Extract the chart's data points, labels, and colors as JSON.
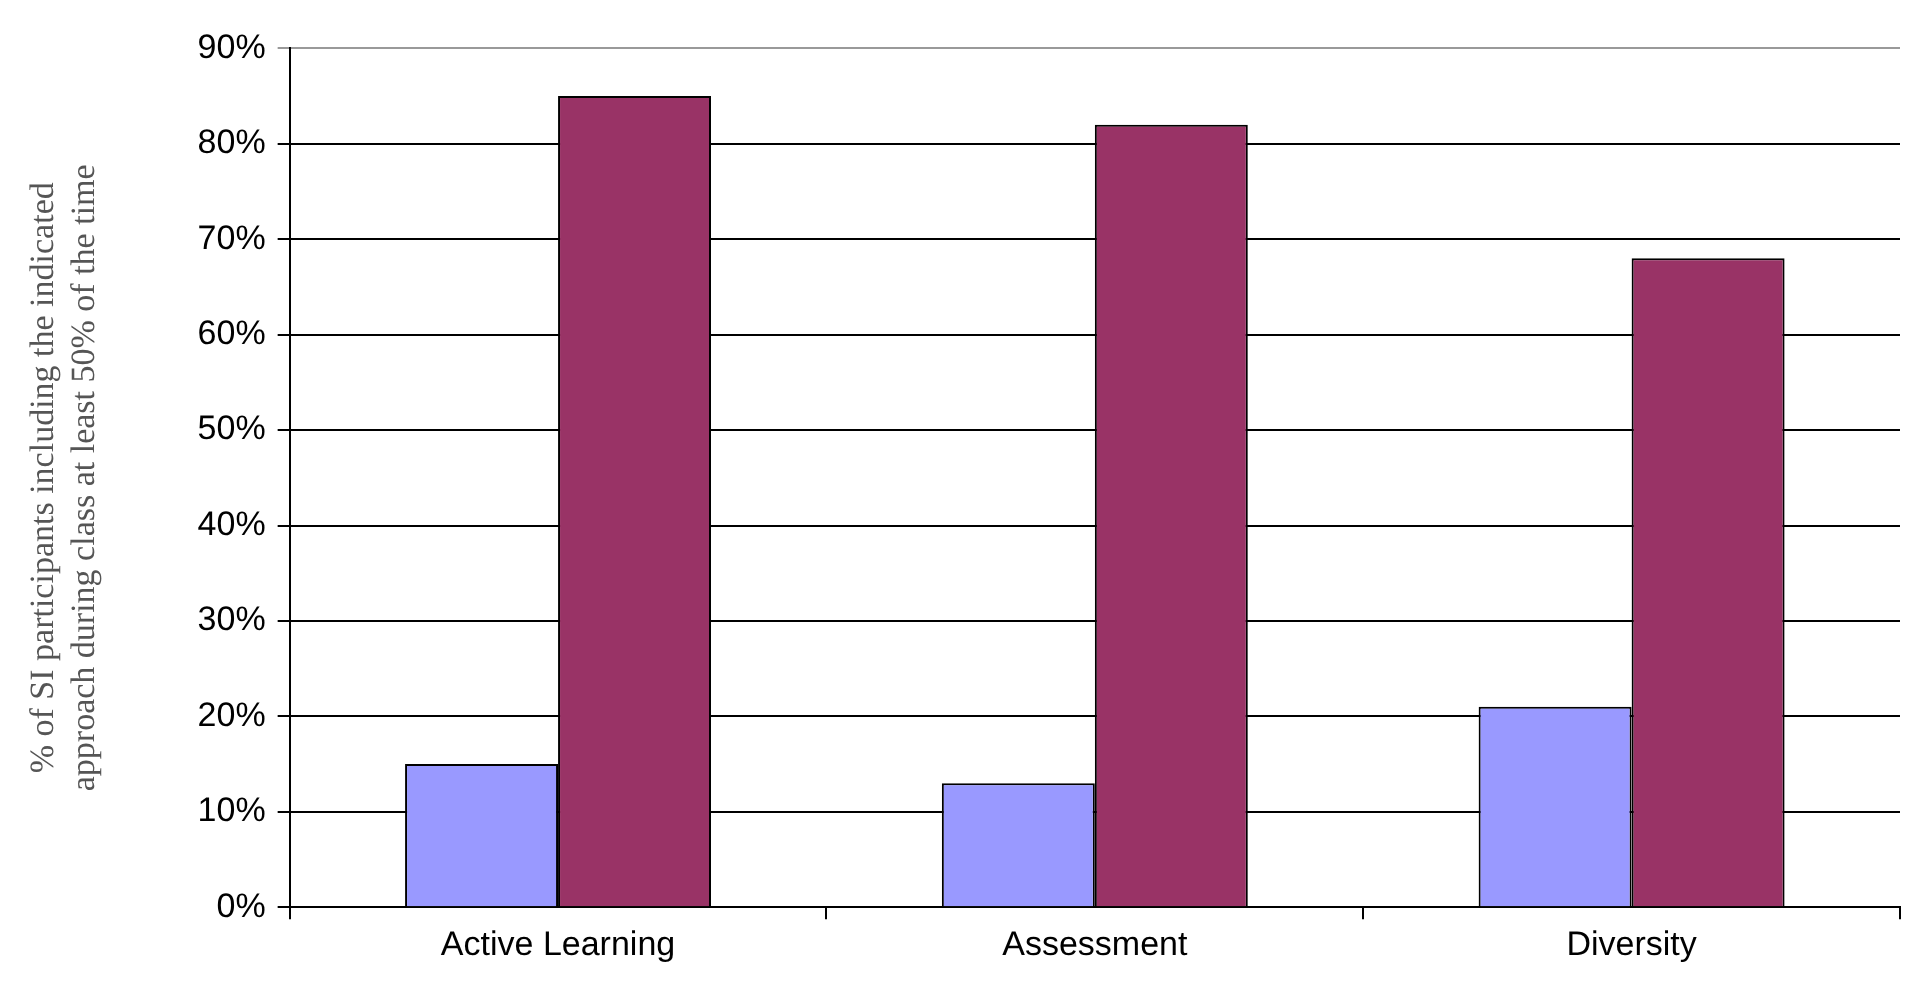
{
  "chart_data": {
    "type": "bar",
    "ylabel": "% of SI participants including the indicated\napproach during class at least 50% of the time",
    "categories": [
      "Active Learning",
      "Assessment",
      "Diversity"
    ],
    "series": [
      {
        "color": "#9999ff",
        "values": [
          15,
          13,
          21
        ]
      },
      {
        "color": "#993366",
        "values": [
          85,
          82,
          68
        ]
      }
    ],
    "ylim": [
      0,
      90
    ],
    "yticks": [
      {
        "value": 0,
        "label": "0%"
      },
      {
        "value": 10,
        "label": "10%"
      },
      {
        "value": 20,
        "label": "20%"
      },
      {
        "value": 30,
        "label": "30%"
      },
      {
        "value": 40,
        "label": "40%"
      },
      {
        "value": 50,
        "label": "50%"
      },
      {
        "value": 60,
        "label": "60%"
      },
      {
        "value": 70,
        "label": "70%"
      },
      {
        "value": 80,
        "label": "80%"
      },
      {
        "value": 90,
        "label": "90%"
      }
    ],
    "grid": "y",
    "legend": false
  }
}
